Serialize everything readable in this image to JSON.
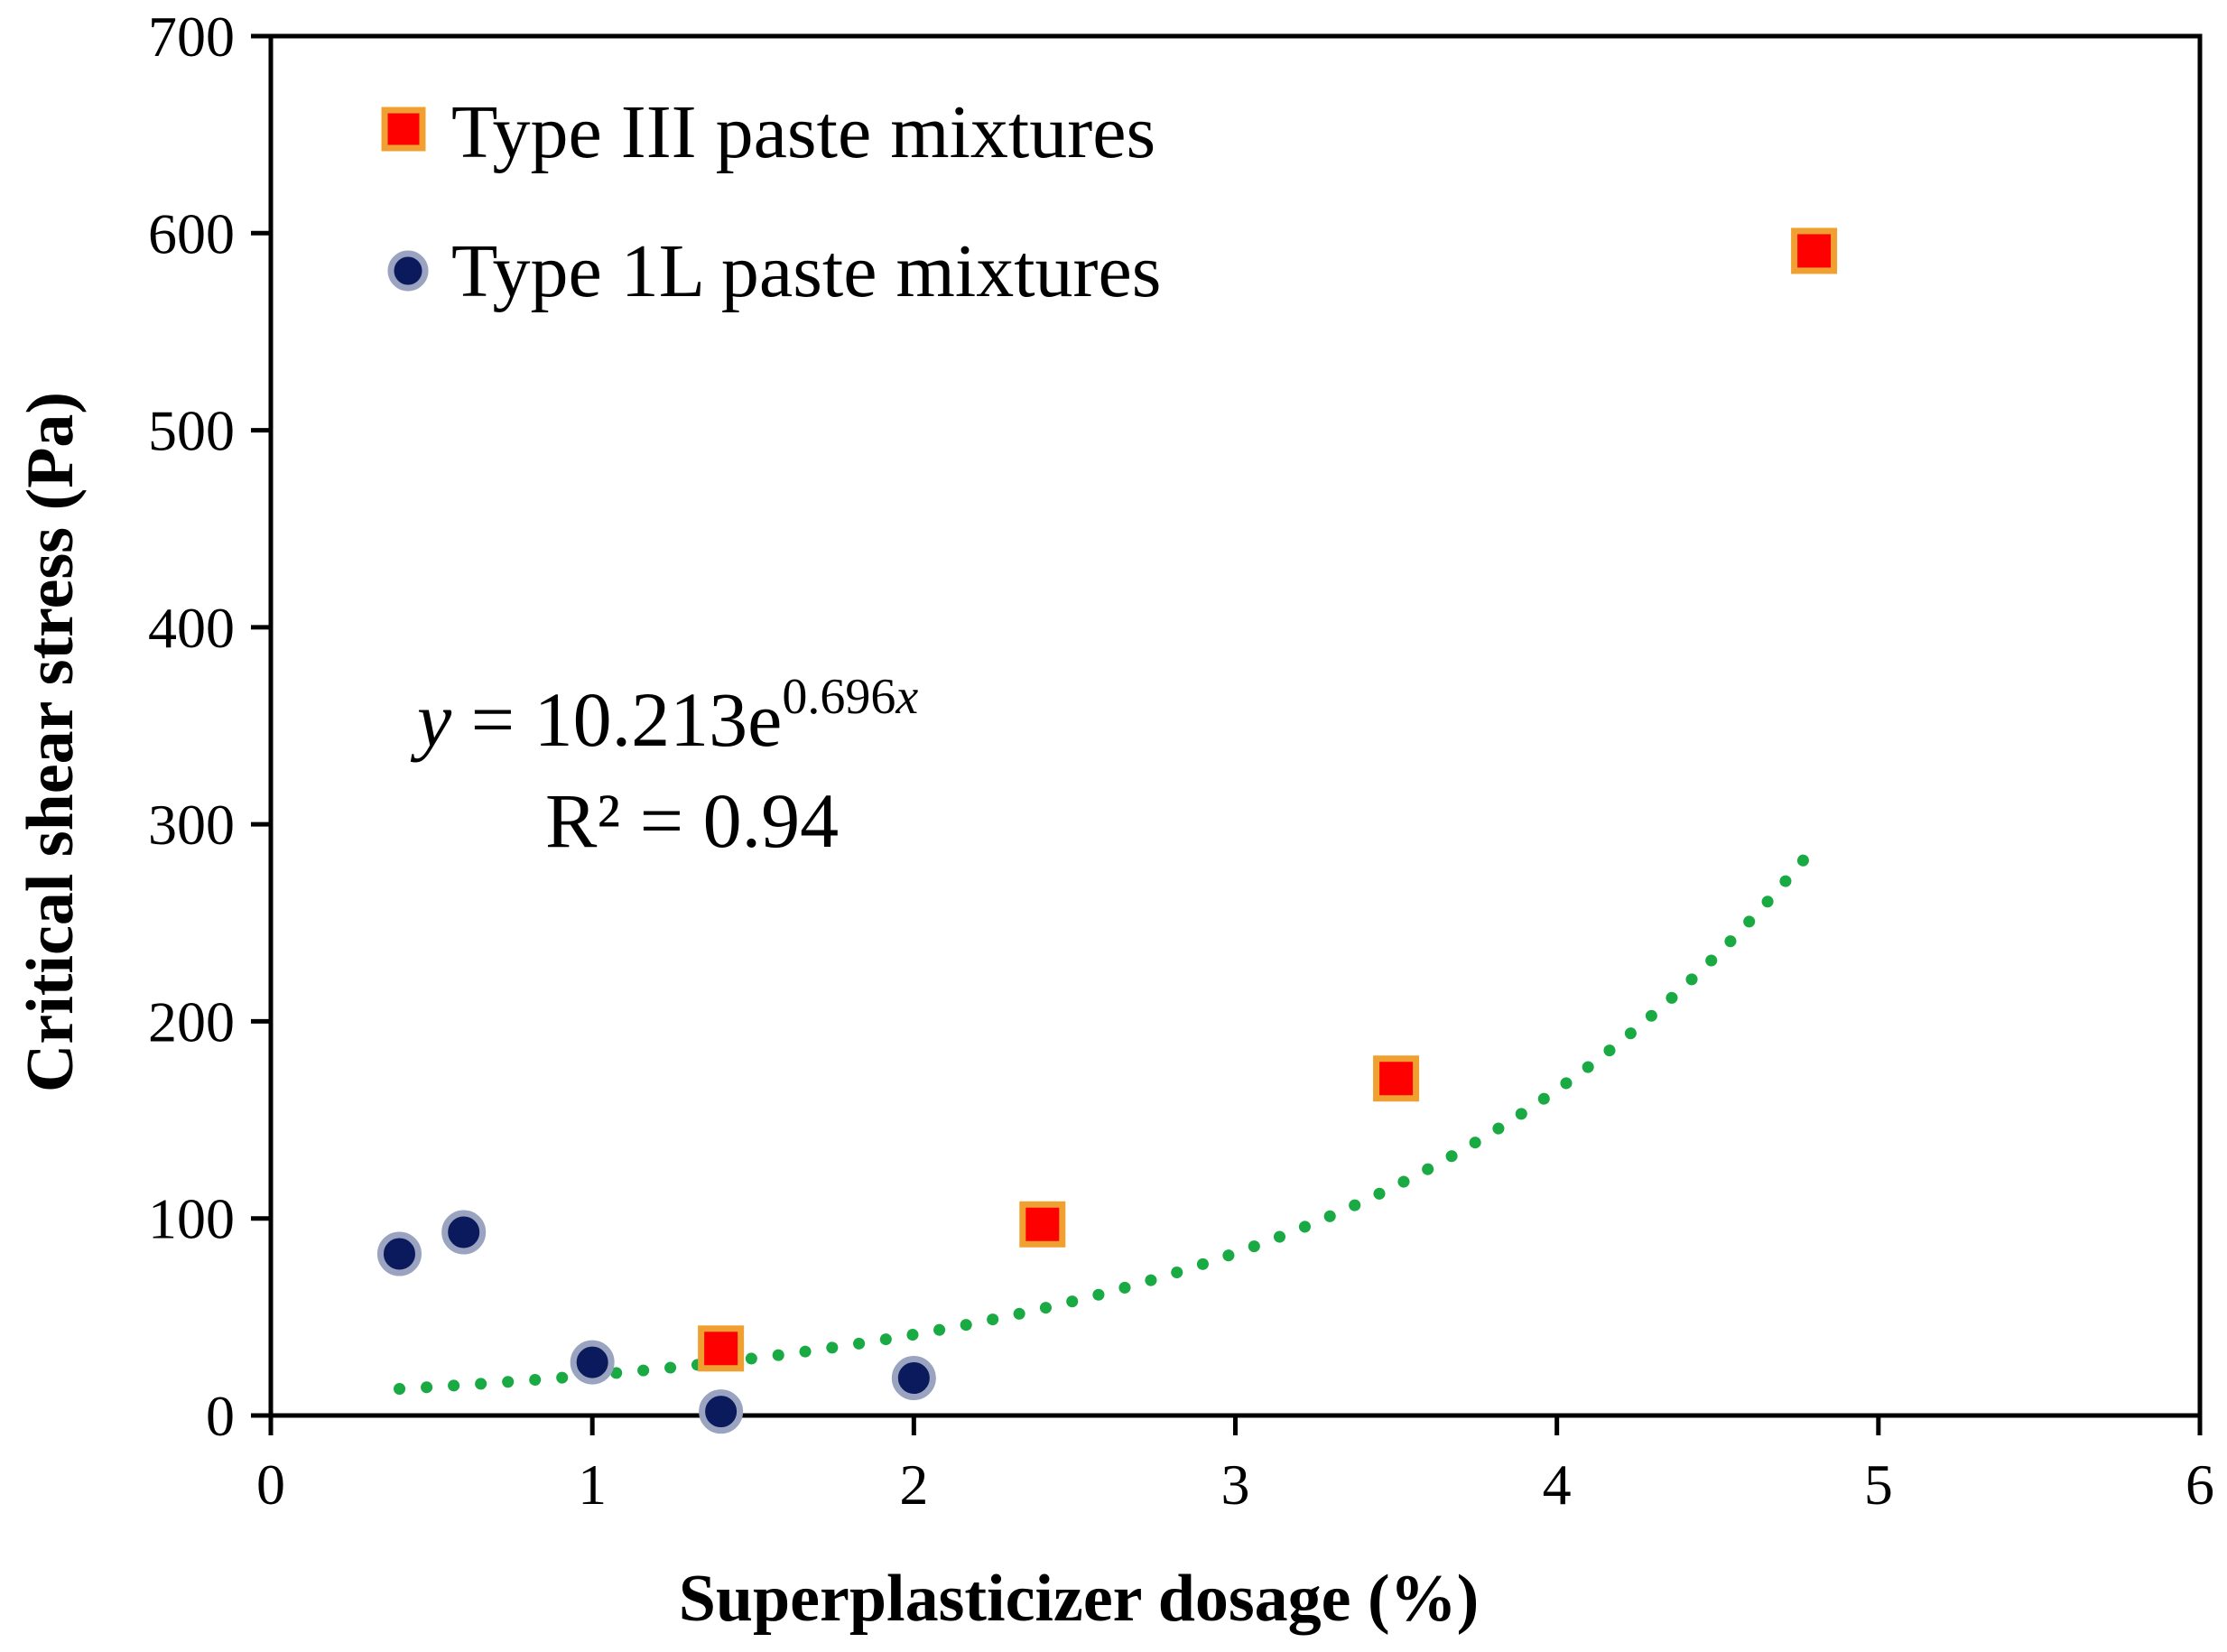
{
  "chart_data": {
    "type": "scatter",
    "title": "",
    "xlabel": "Superplasticizer dosage (%)",
    "ylabel": "Critical shear stress (Pa)",
    "xlim": [
      0,
      6
    ],
    "ylim": [
      0,
      700
    ],
    "x_ticks": [
      "0",
      "1",
      "2",
      "3",
      "4",
      "5",
      "6"
    ],
    "y_ticks": [
      "0",
      "100",
      "200",
      "300",
      "400",
      "500",
      "600",
      "700"
    ],
    "grid": false,
    "legend_position": "top-left",
    "series": [
      {
        "name": "Type III paste mixtures",
        "marker": "square",
        "color": "#ff0000",
        "edge_color": "#f0a030",
        "points": [
          {
            "x": 1.4,
            "y": 34
          },
          {
            "x": 2.4,
            "y": 97
          },
          {
            "x": 3.5,
            "y": 171
          },
          {
            "x": 4.8,
            "y": 591
          }
        ]
      },
      {
        "name": "Type 1L paste mixtures",
        "marker": "circle",
        "color": "#0a1a5c",
        "edge_color": "#9aa4c0",
        "points": [
          {
            "x": 0.4,
            "y": 82
          },
          {
            "x": 0.6,
            "y": 93
          },
          {
            "x": 1.0,
            "y": 27
          },
          {
            "x": 1.4,
            "y": 2
          },
          {
            "x": 2.0,
            "y": 19
          }
        ]
      }
    ],
    "trendline": {
      "type": "exponential",
      "a": 10.213,
      "b": 0.696,
      "x_range": [
        0.4,
        4.8
      ],
      "color": "#1aaa44",
      "style": "dotted"
    },
    "annotation": {
      "eq_y": "y",
      "eq_equals": " = 10.213e",
      "eq_exp_num": "0.696",
      "eq_exp_var": "x",
      "r2": "R² = 0.94"
    }
  }
}
